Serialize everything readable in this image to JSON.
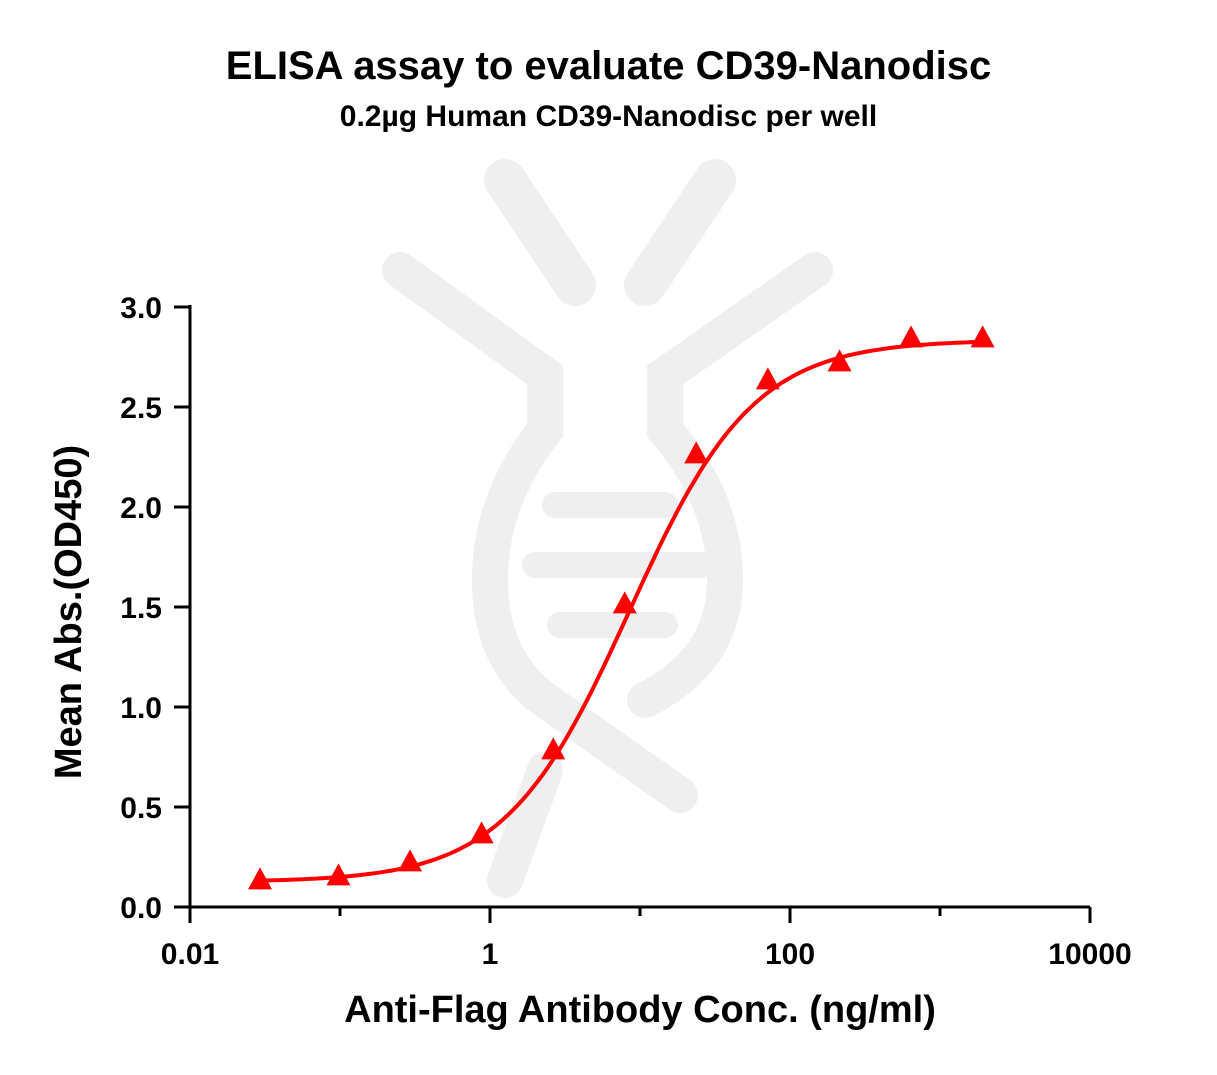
{
  "chart_data": {
    "type": "scatter",
    "title": "ELISA assay to evaluate CD39-Nanodisc",
    "subtitle": "0.2µg Human CD39-Nanodisc per well",
    "xlabel": "Anti-Flag Antibody Conc. (ng/ml)",
    "ylabel": "Mean Abs.(OD450)",
    "x_scale": "log",
    "xlim": [
      0.01,
      10000
    ],
    "ylim": [
      0,
      3.0
    ],
    "x_ticks": [
      0.01,
      1,
      100,
      10000
    ],
    "x_tick_labels": [
      "0.01",
      "1",
      "100",
      "10000"
    ],
    "y_ticks": [
      0,
      0.5,
      1.0,
      1.5,
      2.0,
      2.5,
      3.0
    ],
    "y_tick_labels": [
      "0.0",
      "0.5",
      "1.0",
      "1.5",
      "2.0",
      "2.5",
      "3.0"
    ],
    "grid": false,
    "legend": "none",
    "series": [
      {
        "marker": "triangle",
        "color": "#ff0000",
        "fit": "4PL sigmoid",
        "x": [
          0.0293,
          0.0977,
          0.293,
          0.879,
          2.64,
          7.91,
          23.7,
          71.2,
          214,
          641,
          1923
        ],
        "y": [
          0.13,
          0.15,
          0.22,
          0.36,
          0.78,
          1.51,
          2.26,
          2.63,
          2.72,
          2.84,
          2.84
        ]
      }
    ]
  }
}
